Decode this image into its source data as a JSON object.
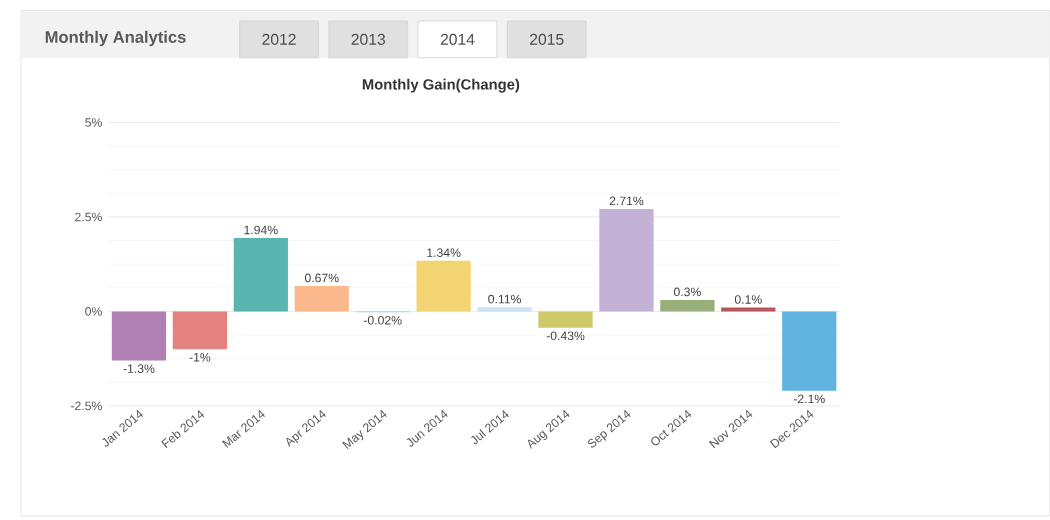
{
  "chart_data": {
    "type": "bar",
    "title": "Monthly Gain(Change)",
    "annotations": [
      "Monthly Analytics",
      "2012",
      "2013",
      "2014",
      "2015"
    ],
    "categories": [
      "Jan 2014",
      "Feb 2014",
      "Mar 2014",
      "Apr 2014",
      "May 2014",
      "Jun 2014",
      "Jul 2014",
      "Aug 2014",
      "Sep 2014",
      "Oct 2014",
      "Nov 2014",
      "Dec 2014"
    ],
    "values": [
      -1.3,
      -1,
      1.94,
      0.67,
      -0.02,
      1.34,
      0.11,
      -0.43,
      2.71,
      0.3,
      0.1,
      -2.1
    ],
    "value_labels": [
      "-1.3%",
      "-1%",
      "1.94%",
      "0.67%",
      "-0.02%",
      "1.34%",
      "0.11%",
      "-0.43%",
      "2.71%",
      "0.3%",
      "0.1%",
      "-2.1%"
    ],
    "colors": [
      "#b07fb4",
      "#e3827e",
      "#5ab4b0",
      "#fdb98e",
      "#8dc8e0",
      "#f2d472",
      "#cde2f2",
      "#cfc96a",
      "#c3b1d6",
      "#97b07a",
      "#b8575a",
      "#62b4e0"
    ],
    "ylim": [
      -2.5,
      5
    ],
    "yticks": [
      {
        "value": -2.5,
        "label": "-2.5%"
      },
      {
        "value": 0,
        "label": "0%"
      },
      {
        "value": 2.5,
        "label": "2.5%"
      },
      {
        "value": 5,
        "label": "5%"
      }
    ],
    "grid": "y"
  }
}
